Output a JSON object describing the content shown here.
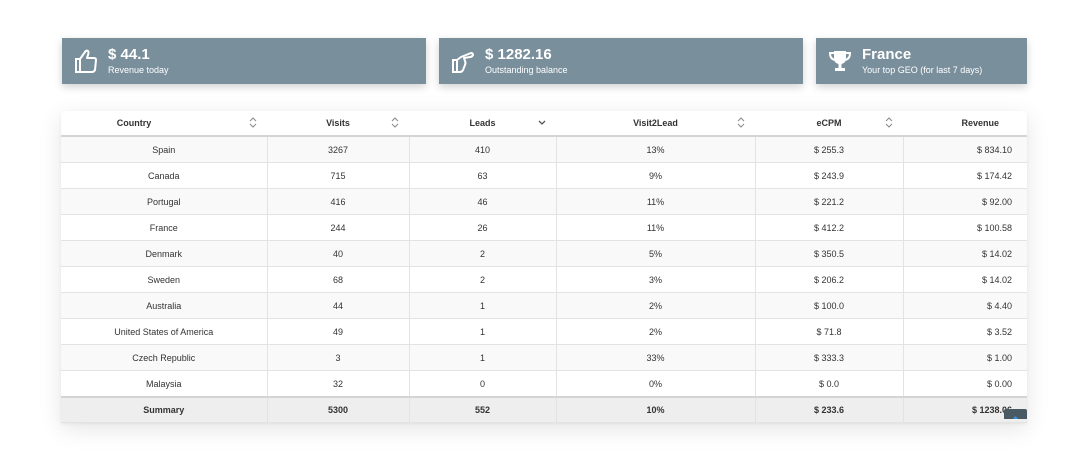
{
  "cards": [
    {
      "value": "$ 44.1",
      "label": "Revenue today",
      "icon": "thumbs-up-icon"
    },
    {
      "value": "$ 1282.16",
      "label": "Outstanding balance",
      "icon": "hand-pointing-icon"
    },
    {
      "value": "France",
      "label": "Your top GEO (for last 7 days)",
      "icon": "trophy-icon"
    }
  ],
  "colors": {
    "card_bg": "#7a8f9c",
    "summary_bg": "#eeeeee",
    "accent": "#4a5a64"
  },
  "table": {
    "headers": [
      "Country",
      "Visits",
      "Leads",
      "Visit2Lead",
      "eCPM",
      "Revenue"
    ],
    "sort_icons": [
      "sort-both-icon",
      "sort-both-icon",
      "sort-down-icon",
      "sort-both-icon",
      "sort-both-icon",
      ""
    ],
    "rows": [
      [
        "Spain",
        "3267",
        "410",
        "13%",
        "$ 255.3",
        "$ 834.10"
      ],
      [
        "Canada",
        "715",
        "63",
        "9%",
        "$ 243.9",
        "$ 174.42"
      ],
      [
        "Portugal",
        "416",
        "46",
        "11%",
        "$ 221.2",
        "$ 92.00"
      ],
      [
        "France",
        "244",
        "26",
        "11%",
        "$ 412.2",
        "$ 100.58"
      ],
      [
        "Denmark",
        "40",
        "2",
        "5%",
        "$ 350.5",
        "$ 14.02"
      ],
      [
        "Sweden",
        "68",
        "2",
        "3%",
        "$ 206.2",
        "$ 14.02"
      ],
      [
        "Australia",
        "44",
        "1",
        "2%",
        "$ 100.0",
        "$ 4.40"
      ],
      [
        "United States of America",
        "49",
        "1",
        "2%",
        "$ 71.8",
        "$ 3.52"
      ],
      [
        "Czech Republic",
        "3",
        "1",
        "33%",
        "$ 333.3",
        "$ 1.00"
      ],
      [
        "Malaysia",
        "32",
        "0",
        "0%",
        "$ 0.0",
        "$ 0.00"
      ]
    ],
    "summary": [
      "Summary",
      "5300",
      "552",
      "10%",
      "$ 233.6",
      "$ 1238.06"
    ]
  }
}
